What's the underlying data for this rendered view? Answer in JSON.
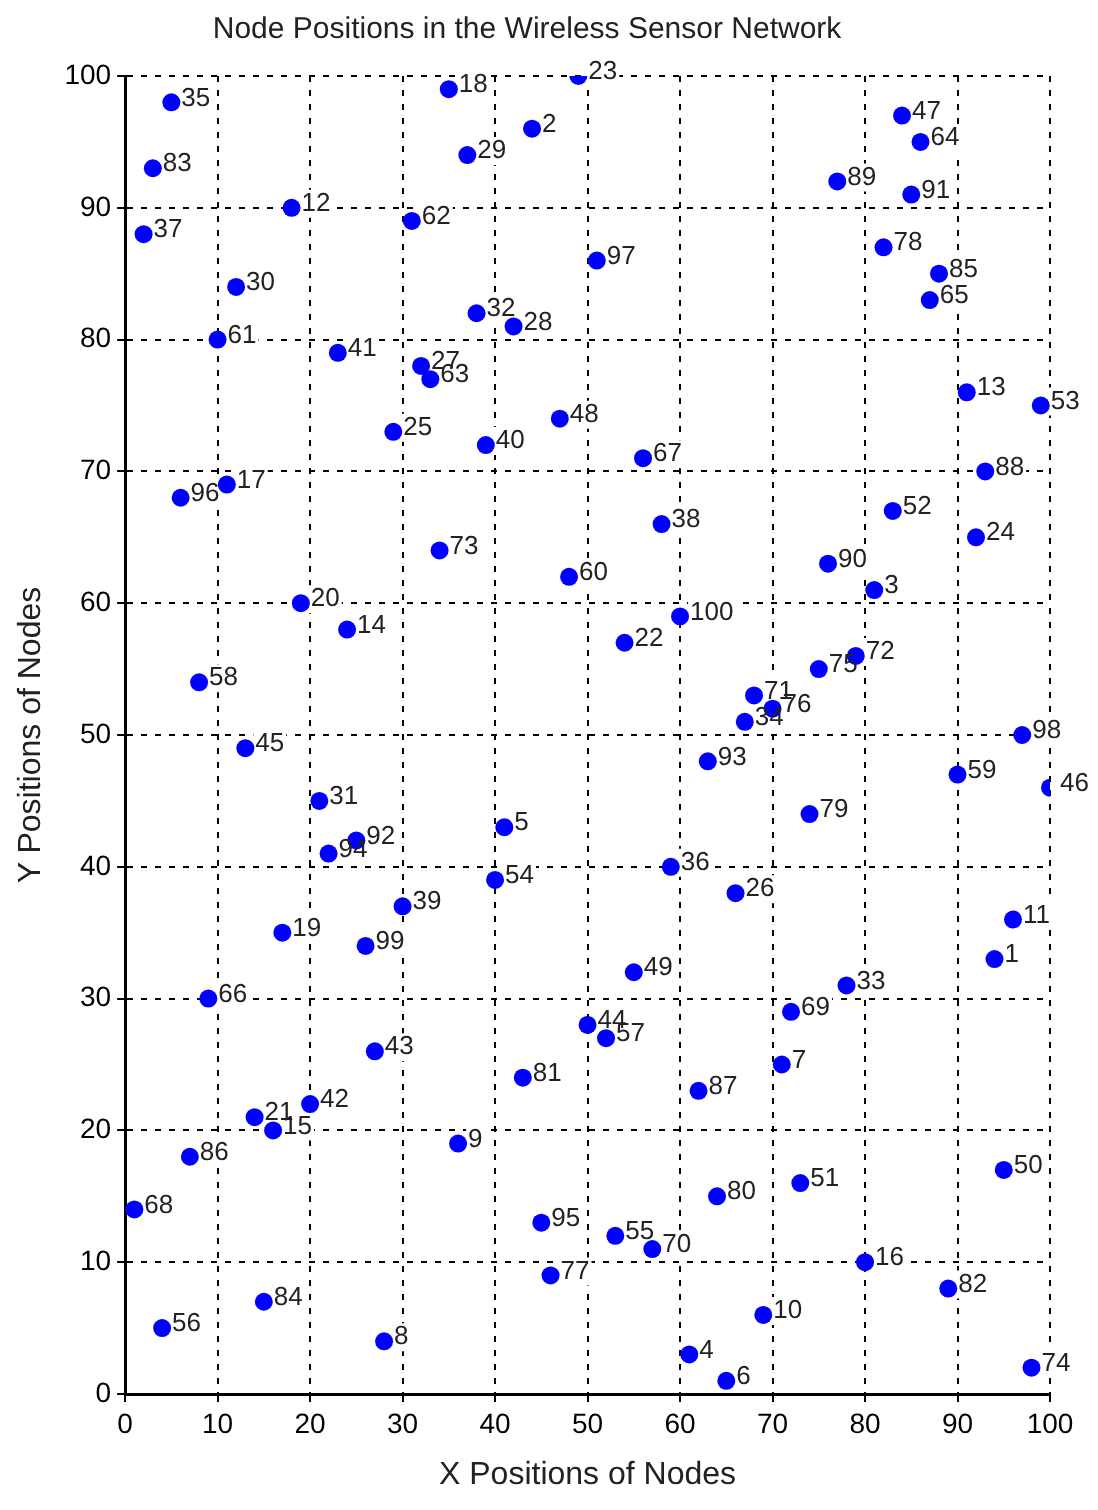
{
  "chart_data": {
    "type": "scatter",
    "title": "Node Positions in the Wireless Sensor Network",
    "xlabel": "X Positions of Nodes",
    "ylabel": "Y Positions of Nodes",
    "x": [
      94,
      44,
      81,
      61,
      41,
      65,
      71,
      28,
      36,
      69,
      96,
      18,
      91,
      24,
      16,
      80,
      11,
      35,
      17,
      19,
      14,
      54,
      49,
      92,
      29,
      66,
      32,
      42,
      37,
      12,
      21,
      38,
      78,
      67,
      5,
      59,
      2,
      58,
      30,
      39,
      23,
      20,
      27,
      50,
      13,
      100,
      84,
      47,
      55,
      95,
      73,
      83,
      99,
      40,
      53,
      4,
      52,
      8,
      90,
      48,
      10,
      31,
      33,
      86,
      87,
      9,
      56,
      1,
      72,
      57,
      68,
      79,
      34,
      98,
      75,
      70,
      46,
      82,
      74,
      64,
      43,
      89,
      3,
      15,
      88,
      7,
      62,
      93,
      77,
      76,
      85,
      25,
      63,
      22,
      45,
      6,
      51,
      97,
      26,
      60
    ],
    "values": [
      33,
      96,
      61,
      3,
      43,
      1,
      25,
      4,
      19,
      6,
      36,
      90,
      76,
      58,
      20,
      10,
      69,
      99,
      35,
      60,
      21,
      57,
      100,
      65,
      73,
      38,
      78,
      81,
      94,
      84,
      45,
      82,
      31,
      51,
      98,
      40,
      88,
      66,
      37,
      72,
      79,
      22,
      26,
      28,
      49,
      46,
      97,
      74,
      32,
      17,
      16,
      67,
      75,
      39,
      12,
      5,
      27,
      54,
      47,
      62,
      80,
      89,
      77,
      95,
      83,
      30,
      71,
      14,
      29,
      11,
      53,
      56,
      64,
      2,
      55,
      52,
      9,
      87,
      44,
      15,
      24,
      8,
      93,
      7,
      85,
      18,
      23,
      70,
      92,
      63,
      91,
      42,
      48,
      41,
      13,
      68,
      86,
      50,
      34,
      59
    ],
    "annotations": [
      {
        "text": "1",
        "x": 94,
        "y": 33
      },
      {
        "text": "2",
        "x": 44,
        "y": 96
      },
      {
        "text": "3",
        "x": 81,
        "y": 61
      },
      {
        "text": "4",
        "x": 61,
        "y": 3
      },
      {
        "text": "5",
        "x": 41,
        "y": 43
      },
      {
        "text": "6",
        "x": 65,
        "y": 1
      },
      {
        "text": "7",
        "x": 71,
        "y": 25
      },
      {
        "text": "8",
        "x": 28,
        "y": 4
      },
      {
        "text": "9",
        "x": 36,
        "y": 19
      },
      {
        "text": "10",
        "x": 69,
        "y": 6
      },
      {
        "text": "11",
        "x": 96,
        "y": 36
      },
      {
        "text": "12",
        "x": 18,
        "y": 90
      },
      {
        "text": "13",
        "x": 91,
        "y": 76
      },
      {
        "text": "14",
        "x": 24,
        "y": 58
      },
      {
        "text": "15",
        "x": 16,
        "y": 20
      },
      {
        "text": "16",
        "x": 80,
        "y": 10
      },
      {
        "text": "17",
        "x": 11,
        "y": 69
      },
      {
        "text": "18",
        "x": 35,
        "y": 99
      },
      {
        "text": "19",
        "x": 17,
        "y": 35
      },
      {
        "text": "20",
        "x": 19,
        "y": 60
      },
      {
        "text": "21",
        "x": 14,
        "y": 21
      },
      {
        "text": "22",
        "x": 54,
        "y": 57
      },
      {
        "text": "23",
        "x": 49,
        "y": 100
      },
      {
        "text": "24",
        "x": 92,
        "y": 65
      },
      {
        "text": "25",
        "x": 29,
        "y": 73
      },
      {
        "text": "26",
        "x": 66,
        "y": 38
      },
      {
        "text": "27",
        "x": 32,
        "y": 78
      },
      {
        "text": "28",
        "x": 42,
        "y": 81
      },
      {
        "text": "29",
        "x": 37,
        "y": 94
      },
      {
        "text": "30",
        "x": 12,
        "y": 84
      },
      {
        "text": "31",
        "x": 21,
        "y": 45
      },
      {
        "text": "32",
        "x": 38,
        "y": 82
      },
      {
        "text": "33",
        "x": 78,
        "y": 31
      },
      {
        "text": "34",
        "x": 67,
        "y": 51
      },
      {
        "text": "35",
        "x": 5,
        "y": 98
      },
      {
        "text": "36",
        "x": 59,
        "y": 40
      },
      {
        "text": "37",
        "x": 2,
        "y": 88
      },
      {
        "text": "38",
        "x": 58,
        "y": 66
      },
      {
        "text": "39",
        "x": 30,
        "y": 37
      },
      {
        "text": "40",
        "x": 39,
        "y": 72
      },
      {
        "text": "41",
        "x": 23,
        "y": 79
      },
      {
        "text": "42",
        "x": 20,
        "y": 22
      },
      {
        "text": "43",
        "x": 27,
        "y": 26
      },
      {
        "text": "44",
        "x": 50,
        "y": 28
      },
      {
        "text": "45",
        "x": 13,
        "y": 49
      },
      {
        "text": "46",
        "x": 100,
        "y": 46
      },
      {
        "text": "47",
        "x": 84,
        "y": 97
      },
      {
        "text": "48",
        "x": 47,
        "y": 74
      },
      {
        "text": "49",
        "x": 55,
        "y": 32
      },
      {
        "text": "50",
        "x": 95,
        "y": 17
      },
      {
        "text": "51",
        "x": 73,
        "y": 16
      },
      {
        "text": "52",
        "x": 83,
        "y": 67
      },
      {
        "text": "53",
        "x": 99,
        "y": 75
      },
      {
        "text": "54",
        "x": 40,
        "y": 39
      },
      {
        "text": "55",
        "x": 53,
        "y": 12
      },
      {
        "text": "56",
        "x": 4,
        "y": 5
      },
      {
        "text": "57",
        "x": 52,
        "y": 27
      },
      {
        "text": "58",
        "x": 8,
        "y": 54
      },
      {
        "text": "59",
        "x": 90,
        "y": 47
      },
      {
        "text": "60",
        "x": 48,
        "y": 62
      },
      {
        "text": "61",
        "x": 10,
        "y": 80
      },
      {
        "text": "62",
        "x": 31,
        "y": 89
      },
      {
        "text": "63",
        "x": 33,
        "y": 77
      },
      {
        "text": "64",
        "x": 86,
        "y": 95
      },
      {
        "text": "65",
        "x": 87,
        "y": 83
      },
      {
        "text": "66",
        "x": 9,
        "y": 30
      },
      {
        "text": "67",
        "x": 56,
        "y": 71
      },
      {
        "text": "68",
        "x": 1,
        "y": 14
      },
      {
        "text": "69",
        "x": 72,
        "y": 29
      },
      {
        "text": "70",
        "x": 57,
        "y": 11
      },
      {
        "text": "71",
        "x": 68,
        "y": 53
      },
      {
        "text": "72",
        "x": 79,
        "y": 56
      },
      {
        "text": "73",
        "x": 34,
        "y": 64
      },
      {
        "text": "74",
        "x": 98,
        "y": 2
      },
      {
        "text": "75",
        "x": 75,
        "y": 55
      },
      {
        "text": "76",
        "x": 70,
        "y": 52
      },
      {
        "text": "77",
        "x": 46,
        "y": 9
      },
      {
        "text": "78",
        "x": 82,
        "y": 87
      },
      {
        "text": "79",
        "x": 74,
        "y": 44
      },
      {
        "text": "80",
        "x": 64,
        "y": 15
      },
      {
        "text": "81",
        "x": 43,
        "y": 24
      },
      {
        "text": "82",
        "x": 89,
        "y": 8
      },
      {
        "text": "83",
        "x": 3,
        "y": 93
      },
      {
        "text": "84",
        "x": 15,
        "y": 7
      },
      {
        "text": "85",
        "x": 88,
        "y": 85
      },
      {
        "text": "86",
        "x": 7,
        "y": 18
      },
      {
        "text": "87",
        "x": 62,
        "y": 23
      },
      {
        "text": "88",
        "x": 93,
        "y": 70
      },
      {
        "text": "89",
        "x": 77,
        "y": 92
      },
      {
        "text": "90",
        "x": 76,
        "y": 63
      },
      {
        "text": "91",
        "x": 85,
        "y": 91
      },
      {
        "text": "92",
        "x": 25,
        "y": 42
      },
      {
        "text": "93",
        "x": 63,
        "y": 48
      },
      {
        "text": "94",
        "x": 22,
        "y": 41
      },
      {
        "text": "95",
        "x": 45,
        "y": 13
      },
      {
        "text": "96",
        "x": 6,
        "y": 68
      },
      {
        "text": "97",
        "x": 51,
        "y": 86
      },
      {
        "text": "98",
        "x": 97,
        "y": 50
      },
      {
        "text": "99",
        "x": 26,
        "y": 34
      },
      {
        "text": "100",
        "x": 60,
        "y": 59
      }
    ],
    "color": "#0000ff",
    "marker": "circle",
    "grid": true,
    "xlim": [
      0,
      100
    ],
    "xticks": [
      0,
      10,
      20,
      30,
      40,
      50,
      60,
      70,
      80,
      90,
      100
    ],
    "ylim": [
      0,
      100
    ],
    "yticks": [
      0,
      10,
      20,
      30,
      40,
      50,
      60,
      70,
      80,
      90,
      100
    ]
  }
}
